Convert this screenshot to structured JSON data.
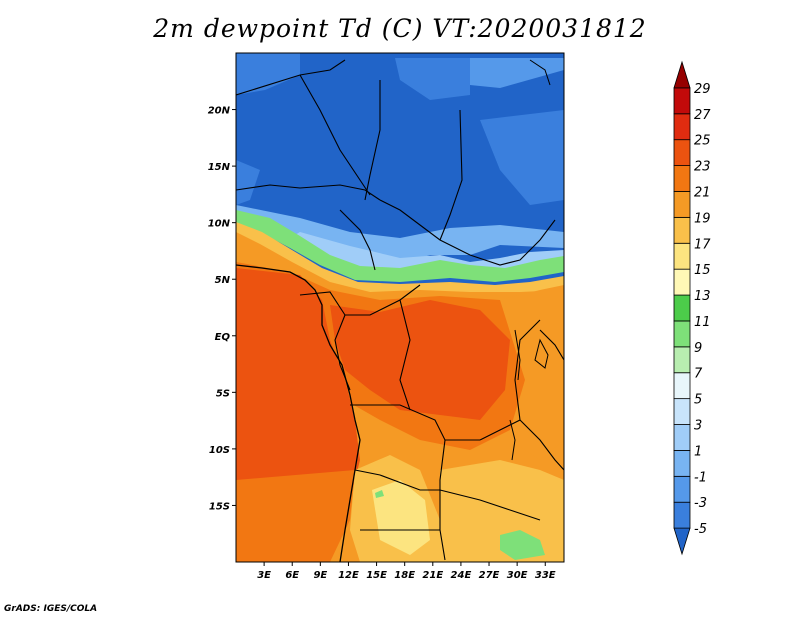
{
  "title": "2m dewpoint Td (C) VT:2020031812",
  "credit": "GrADS: IGES/COLA",
  "map": {
    "lon_labels": [
      "3E",
      "6E",
      "9E",
      "12E",
      "15E",
      "18E",
      "21E",
      "24E",
      "27E",
      "30E",
      "33E"
    ],
    "lat_labels": [
      "20N",
      "15N",
      "10N",
      "5N",
      "EQ",
      "5S",
      "10S",
      "15S"
    ],
    "lon_range": [
      0,
      35
    ],
    "lat_range": [
      -20,
      25
    ]
  },
  "colorbar": {
    "labels": [
      "-5",
      "-3",
      "-1",
      "1",
      "3",
      "5",
      "7",
      "9",
      "11",
      "13",
      "15",
      "17",
      "19",
      "21",
      "23",
      "25",
      "27",
      "29"
    ],
    "colors": [
      "#2164c8",
      "#3a7fdd",
      "#5599ea",
      "#78b4f2",
      "#a0cdf8",
      "#c8e4fb",
      "#e8f6fb",
      "#b8eeb0",
      "#7ee079",
      "#4ccc4a",
      "#fff8b6",
      "#fce480",
      "#f9c04a",
      "#f59a25",
      "#f27712",
      "#ec5310",
      "#e02c10",
      "#c20a0a",
      "#960000"
    ]
  }
}
